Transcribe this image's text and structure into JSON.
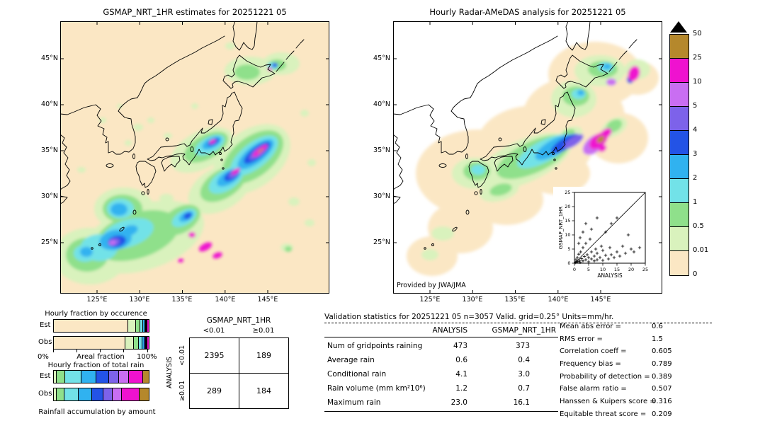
{
  "palette": {
    "p0": "#fbe7c4",
    "p001": "#d9f2bd",
    "p05": "#8fe08b",
    "p1": "#72e2e8",
    "p2": "#30b2f0",
    "p3": "#2353e6",
    "p4": "#7d62ea",
    "p5": "#c96ef2",
    "p10": "#ef12cf",
    "p25": "#b5882c"
  },
  "colorbar": {
    "labels": [
      "50",
      "25",
      "10",
      "5",
      "4",
      "3",
      "2",
      "1",
      "0.5",
      "0.01",
      "0"
    ],
    "order_top_to_bottom": [
      "p25",
      "p10",
      "p5",
      "p4",
      "p3",
      "p2",
      "p1",
      "p05",
      "p001",
      "p0"
    ],
    "overflow_marker": "black-up-triangle"
  },
  "chart_data": [
    {
      "type": "heatmap",
      "panel": "left",
      "title": "GSMAP_NRT_1HR estimates for 20251221 05",
      "units": "mm/hr",
      "x_ticks": [
        "125°E",
        "130°E",
        "135°E",
        "140°E",
        "145°E"
      ],
      "y_ticks": [
        "45°N",
        "40°N",
        "35°N",
        "30°N",
        "25°N"
      ],
      "scale_levels": [
        0,
        0.01,
        0.5,
        1,
        2,
        3,
        4,
        5,
        10,
        25,
        50
      ],
      "description": "GSMaP satellite precipitation estimates over Japan; SW-NE oriented rain bands with cores above 10 mm/hr east of Honshu, over central Honshu and south of 28N"
    },
    {
      "type": "heatmap",
      "panel": "right",
      "title": "Hourly Radar-AMeDAS analysis for 20251221 05",
      "units": "mm/hr",
      "credit": "Provided by JWA/JMA",
      "x_ticks": [
        "125°E",
        "130°E",
        "135°E",
        "140°E",
        "145°E"
      ],
      "y_ticks": [
        "45°N",
        "40°N",
        "35°N",
        "30°N",
        "25°N"
      ],
      "scale_levels": [
        0,
        0.01,
        0.5,
        1,
        2,
        3,
        4,
        5,
        10,
        25,
        50
      ],
      "description": "Radar-AMeDAS analyzed precipitation inside radar coverage (pale shaded area); rain band along the Pacific coast with cores above 10 mm/hr near Kanto and eastern Hokkaido"
    },
    {
      "type": "scatter",
      "xlabel": "ANALYSIS",
      "ylabel": "GSMAP_NRT_1HR",
      "xlim": [
        0,
        25
      ],
      "ylim": [
        0,
        25
      ],
      "tick_labels": [
        "0",
        "5",
        "10",
        "15",
        "20",
        "25"
      ],
      "points": [
        [
          0.3,
          0.2
        ],
        [
          0.5,
          1.2
        ],
        [
          0.8,
          0.4
        ],
        [
          1,
          2
        ],
        [
          1.2,
          0.6
        ],
        [
          1.5,
          3.2
        ],
        [
          1.5,
          7
        ],
        [
          1.8,
          1
        ],
        [
          2,
          0.3
        ],
        [
          2,
          9
        ],
        [
          2.2,
          4
        ],
        [
          2.5,
          1.6
        ],
        [
          3,
          0.8
        ],
        [
          3,
          5.5
        ],
        [
          3,
          11
        ],
        [
          3.5,
          2.4
        ],
        [
          4,
          1.2
        ],
        [
          4,
          7
        ],
        [
          4,
          14
        ],
        [
          4.5,
          3
        ],
        [
          5,
          0.5
        ],
        [
          5,
          2
        ],
        [
          5.5,
          8.5
        ],
        [
          6,
          1.5
        ],
        [
          6,
          4
        ],
        [
          6,
          12
        ],
        [
          7,
          0.8
        ],
        [
          7,
          2.5
        ],
        [
          7.5,
          5
        ],
        [
          8,
          1.2
        ],
        [
          8,
          3.5
        ],
        [
          8,
          16
        ],
        [
          9,
          2
        ],
        [
          9.5,
          6
        ],
        [
          10,
          1
        ],
        [
          10,
          4.5
        ],
        [
          11,
          2.8
        ],
        [
          11,
          11
        ],
        [
          12,
          1.5
        ],
        [
          12.5,
          5.5
        ],
        [
          13,
          3
        ],
        [
          13,
          14
        ],
        [
          14,
          2
        ],
        [
          15,
          4
        ],
        [
          15,
          16
        ],
        [
          16,
          2.5
        ],
        [
          17,
          6
        ],
        [
          18,
          3.5
        ],
        [
          19,
          10
        ],
        [
          20,
          5
        ],
        [
          21,
          4
        ],
        [
          23,
          5.5
        ]
      ]
    },
    {
      "type": "bar",
      "orientation": "horizontal-stacked",
      "title": "Hourly fraction by occurence",
      "axis": {
        "min": "0%",
        "max": "100%",
        "label": "Areal fraction"
      },
      "rows": [
        {
          "label": "Est",
          "segments": [
            {
              "color": "p0",
              "pct": 78
            },
            {
              "color": "p001",
              "pct": 8.5
            },
            {
              "color": "p05",
              "pct": 4.5
            },
            {
              "color": "p1",
              "pct": 3
            },
            {
              "color": "p2",
              "pct": 2
            },
            {
              "color": "p3",
              "pct": 1.2
            },
            {
              "color": "p4",
              "pct": 0.9
            },
            {
              "color": "p5",
              "pct": 0.7
            },
            {
              "color": "p10",
              "pct": 1.2
            }
          ]
        },
        {
          "label": "Obs",
          "segments": [
            {
              "color": "p0",
              "pct": 75
            },
            {
              "color": "p001",
              "pct": 9
            },
            {
              "color": "p05",
              "pct": 5.5
            },
            {
              "color": "p1",
              "pct": 3.5
            },
            {
              "color": "p2",
              "pct": 2.3
            },
            {
              "color": "p3",
              "pct": 1.4
            },
            {
              "color": "p4",
              "pct": 1.0
            },
            {
              "color": "p5",
              "pct": 0.8
            },
            {
              "color": "p10",
              "pct": 1.5
            }
          ]
        }
      ]
    },
    {
      "type": "bar",
      "orientation": "horizontal-stacked",
      "title": "Hourly fraction of total rain",
      "caption": "Rainfall accumulation by amount",
      "rows": [
        {
          "label": "Est",
          "segments": [
            {
              "color": "p001",
              "pct": 3
            },
            {
              "color": "p05",
              "pct": 9
            },
            {
              "color": "p1",
              "pct": 17
            },
            {
              "color": "p2",
              "pct": 16
            },
            {
              "color": "p3",
              "pct": 13
            },
            {
              "color": "p4",
              "pct": 11
            },
            {
              "color": "p5",
              "pct": 10
            },
            {
              "color": "p10",
              "pct": 15
            },
            {
              "color": "p25",
              "pct": 6
            }
          ]
        },
        {
          "label": "Obs",
          "segments": [
            {
              "color": "p001",
              "pct": 3
            },
            {
              "color": "p05",
              "pct": 8
            },
            {
              "color": "p1",
              "pct": 15
            },
            {
              "color": "p2",
              "pct": 14
            },
            {
              "color": "p3",
              "pct": 12
            },
            {
              "color": "p4",
              "pct": 10
            },
            {
              "color": "p5",
              "pct": 10
            },
            {
              "color": "p10",
              "pct": 18
            },
            {
              "color": "p25",
              "pct": 10
            }
          ]
        }
      ]
    },
    {
      "type": "table",
      "title": "GSMAP_NRT_1HR",
      "row_group": "ANALYSIS",
      "col_labels": [
        "<0.01",
        "≥0.01"
      ],
      "row_labels": [
        "<0.01",
        "≥0.01"
      ],
      "values": [
        [
          2395,
          189
        ],
        [
          289,
          184
        ]
      ]
    },
    {
      "type": "table",
      "title": "Validation statistics for 20251221 05  n=3057 Valid. grid=0.25° Units=mm/hr.",
      "col_headers": [
        "ANALYSIS",
        "GSMAP_NRT_1HR"
      ],
      "rows": [
        {
          "label": "Num of gridpoints raining",
          "analysis": "473",
          "gsmap": "373"
        },
        {
          "label": "Average rain",
          "analysis": "0.6",
          "gsmap": "0.4"
        },
        {
          "label": "Conditional rain",
          "analysis": "4.1",
          "gsmap": "3.0"
        },
        {
          "label": "Rain volume (mm km²10⁶)",
          "analysis": "1.2",
          "gsmap": "0.7"
        },
        {
          "label": "Maximum rain",
          "analysis": "23.0",
          "gsmap": "16.1"
        }
      ],
      "scores": [
        {
          "label": "Mean abs error =",
          "value": "0.6"
        },
        {
          "label": "RMS error =",
          "value": "1.5"
        },
        {
          "label": "Correlation coeff =",
          "value": "0.605"
        },
        {
          "label": "Frequency bias =",
          "value": "0.789"
        },
        {
          "label": "Probability of detection =",
          "value": "0.389"
        },
        {
          "label": "False alarm ratio =",
          "value": "0.507"
        },
        {
          "label": "Hanssen & Kuipers score =",
          "value": "0.316"
        },
        {
          "label": "Equitable threat score =",
          "value": "0.209"
        }
      ]
    }
  ]
}
